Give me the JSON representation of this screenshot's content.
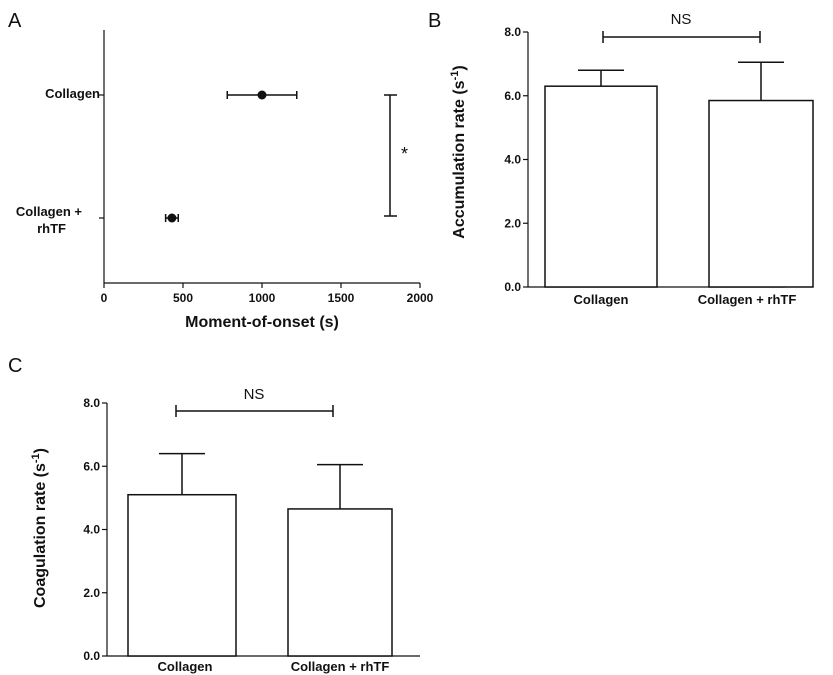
{
  "chart_data": [
    {
      "panel": "A",
      "type": "scatter",
      "categories": [
        "Collagen",
        "Collagen + rhTF"
      ],
      "values": [
        1000,
        430
      ],
      "errors": [
        220,
        40
      ],
      "xlabel": "Moment-of-onset (s)",
      "xticks": [
        "0",
        "500",
        "1000",
        "1500",
        "2000"
      ],
      "xlim": [
        0,
        2000
      ],
      "significance": "*"
    },
    {
      "panel": "B",
      "type": "bar",
      "categories": [
        "Collagen",
        "Collagen + rhTF"
      ],
      "values": [
        6.3,
        5.85
      ],
      "errors": [
        0.5,
        1.2
      ],
      "ylabel_main": "Accumulation  rate (s",
      "ylabel_sup": "-1",
      "ylabel_close": ")",
      "yticks": [
        "0.0",
        "2.0",
        "4.0",
        "6.0",
        "8.0"
      ],
      "ylim": [
        0,
        8
      ],
      "significance": "NS"
    },
    {
      "panel": "C",
      "type": "bar",
      "categories": [
        "Collagen",
        "Collagen + rhTF"
      ],
      "values": [
        5.1,
        4.65
      ],
      "errors": [
        1.3,
        1.4
      ],
      "ylabel_main": "Coagulation rate (s",
      "ylabel_sup": "-1",
      "ylabel_close": ")",
      "yticks": [
        "0.0",
        "2.0",
        "4.0",
        "6.0",
        "8.0"
      ],
      "ylim": [
        0,
        8
      ],
      "significance": "NS"
    }
  ]
}
